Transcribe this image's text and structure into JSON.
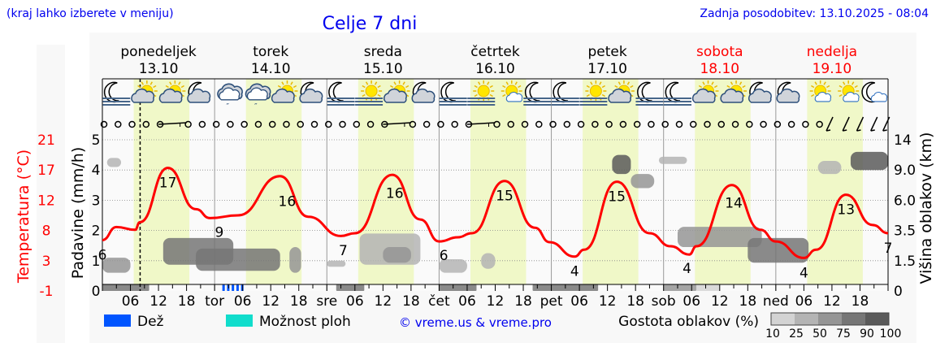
{
  "header": {
    "menu_hint": "(kraj lahko izberete v meniju)",
    "title": "Celje 7 dni",
    "last_update": "Zadnja posodobitev: 13.10.2025 - 08:04"
  },
  "days": [
    {
      "name": "ponedeljek",
      "date": "13.10",
      "abbr": "",
      "weekend": false
    },
    {
      "name": "torek",
      "date": "14.10",
      "abbr": "tor",
      "weekend": false
    },
    {
      "name": "sreda",
      "date": "15.10",
      "abbr": "sre",
      "weekend": false
    },
    {
      "name": "četrtek",
      "date": "16.10",
      "abbr": "čet",
      "weekend": false
    },
    {
      "name": "petek",
      "date": "17.10",
      "abbr": "pet",
      "weekend": false
    },
    {
      "name": "sobota",
      "date": "18.10",
      "abbr": "sob",
      "weekend": true
    },
    {
      "name": "nedelja",
      "date": "19.10",
      "abbr": "ned",
      "weekend": true
    }
  ],
  "hour_ticks": [
    "06",
    "12",
    "18"
  ],
  "legend": {
    "rain": "Dež",
    "showers": "Možnost ploh",
    "copyright": "© vreme.us & vreme.pro",
    "cloud_density": "Gostota oblakov (%)",
    "density_levels": [
      "10",
      "25",
      "50",
      "75",
      "90",
      "100"
    ]
  },
  "colors": {
    "temperature": "#ff0000",
    "rain": "#0055ff",
    "showers": "#11ddcc",
    "daylight": "#f0f8c8",
    "title": "#0000ee",
    "density": [
      "#d3d3d3",
      "#b4b4b4",
      "#959595",
      "#767676",
      "#5a5a5a"
    ]
  },
  "chart_data": {
    "type": "line",
    "title": "Celje 7 dni",
    "xlabel": "",
    "ylabel_left": "Padavine (mm/h)",
    "ylabel_temp": "Temperatura (°C)",
    "ylabel_right": "Višina oblakov (km)",
    "xlim_hours": [
      0,
      168
    ],
    "ylim_precip": [
      0,
      5
    ],
    "precip_ticks": [
      "0",
      "1",
      "2",
      "3",
      "4",
      "5"
    ],
    "temp_ticks": [
      "-1",
      "3",
      "8",
      "12",
      "17",
      "21"
    ],
    "cloud_height_ticks": [
      "0",
      "1.5",
      "3.5",
      "6.0",
      "9.0",
      "14"
    ],
    "cloud_height_values": [
      0,
      1.5,
      3.5,
      6,
      9,
      14
    ],
    "current_time_hour": 8.07,
    "daylight_hours": [
      6.7,
      18.6
    ],
    "temperature": {
      "hours": [
        0,
        3,
        7,
        8,
        14,
        20,
        23,
        29,
        38,
        44,
        51,
        54,
        62,
        68,
        72,
        76,
        79,
        86,
        92.5,
        95.6,
        101,
        103,
        110,
        117,
        121.5,
        125.5,
        127,
        134.6,
        140.7,
        144,
        150,
        152.6,
        159,
        164.7,
        168
      ],
      "values": [
        6.4,
        8.3,
        7.9,
        9.0,
        16.9,
        10.9,
        9.6,
        10.0,
        15.7,
        9.8,
        7.0,
        7.4,
        15.9,
        9.4,
        6.2,
        6.8,
        7.4,
        15.0,
        8.2,
        6.1,
        4.0,
        5.0,
        14.9,
        7.4,
        5.5,
        4.3,
        5.5,
        14.4,
        7.9,
        6.2,
        3.8,
        5.0,
        13.0,
        8.6,
        7.4
      ]
    },
    "temp_labels": [
      {
        "hour": 0,
        "value": "6"
      },
      {
        "hour": 14,
        "value": "17"
      },
      {
        "hour": 25,
        "value": "9"
      },
      {
        "hour": 39.5,
        "value": "16"
      },
      {
        "hour": 51.5,
        "value": "7"
      },
      {
        "hour": 62.5,
        "value": "16"
      },
      {
        "hour": 73,
        "value": "6"
      },
      {
        "hour": 86,
        "value": "15"
      },
      {
        "hour": 101,
        "value": "4"
      },
      {
        "hour": 110,
        "value": "15"
      },
      {
        "hour": 125,
        "value": "4"
      },
      {
        "hour": 135,
        "value": "14"
      },
      {
        "hour": 150,
        "value": "4"
      },
      {
        "hour": 159,
        "value": "13"
      },
      {
        "hour": 168,
        "value": "7"
      }
    ],
    "rain_hours": [
      26,
      27,
      28,
      29,
      30
    ],
    "clouds": [
      [
        0,
        6,
        0.9,
        1.7,
        50
      ],
      [
        1,
        4,
        9.5,
        11,
        25
      ],
      [
        13,
        28,
        1.3,
        3.0,
        75
      ],
      [
        20,
        38,
        1.0,
        2.3,
        75
      ],
      [
        40,
        42.5,
        0.9,
        2.4,
        50
      ],
      [
        48,
        52,
        1.2,
        1.5,
        25
      ],
      [
        55,
        68,
        1.3,
        3.3,
        25
      ],
      [
        60,
        66,
        1.4,
        2.4,
        50
      ],
      [
        72,
        78,
        0.9,
        1.6,
        25
      ],
      [
        81,
        84,
        1.1,
        2.0,
        25
      ],
      [
        109,
        113,
        8.6,
        11.5,
        90
      ],
      [
        113,
        118,
        7.2,
        8.6,
        50
      ],
      [
        119,
        125,
        10,
        11.2,
        25
      ],
      [
        123,
        141,
        2.4,
        3.8,
        50
      ],
      [
        138,
        151,
        1.4,
        3.0,
        75
      ],
      [
        153,
        158,
        8.6,
        10.5,
        25
      ],
      [
        160,
        168,
        9.0,
        12.0,
        90
      ],
      [
        0,
        10,
        0,
        0.2,
        75
      ],
      [
        50,
        56,
        0,
        0.2,
        75
      ],
      [
        72,
        80,
        0,
        0.2,
        75
      ],
      [
        92,
        106,
        0,
        0.2,
        75
      ],
      [
        120,
        127,
        0,
        0.2,
        50
      ],
      [
        127,
        132,
        0,
        0.2,
        10
      ]
    ],
    "wind": {
      "calm_hours": [
        0,
        3,
        6,
        9,
        12,
        18,
        21,
        24,
        27,
        30,
        33,
        36,
        39,
        42,
        45,
        48,
        51,
        54,
        57,
        60,
        66,
        69,
        72,
        75,
        78,
        84,
        87,
        90,
        93,
        96,
        99,
        102,
        105,
        108,
        111,
        114,
        117,
        120,
        123,
        126,
        129,
        132,
        135,
        138,
        141,
        144,
        147,
        150,
        153
      ],
      "breeze_segments": [
        [
          12,
          18
        ],
        [
          60,
          66
        ],
        [
          78,
          84
        ]
      ],
      "barb_hours": [
        155.5,
        159,
        162,
        165,
        167.6
      ]
    },
    "weather_icons": [
      "moon-fog",
      "sun-cloud",
      "sun-cloud",
      "moon-cloud",
      "cloud-drizzle",
      "cloud-drizzle",
      "sun-cloud",
      "moon-cloud",
      "moon-fog",
      "sun-fog",
      "sun-cloud",
      "moon-cloud",
      "moon-fog",
      "sun-fog",
      "sun-small-cloud",
      "moon-fog",
      "moon-fog",
      "sun-fog",
      "sun-cloud",
      "moon-fog",
      "moon-fog",
      "sun-cloud",
      "sun-cloud",
      "moon-cloud",
      "moon-cloud",
      "sun-small-cloud",
      "sun-small-cloud",
      "moon-small-cloud"
    ]
  }
}
